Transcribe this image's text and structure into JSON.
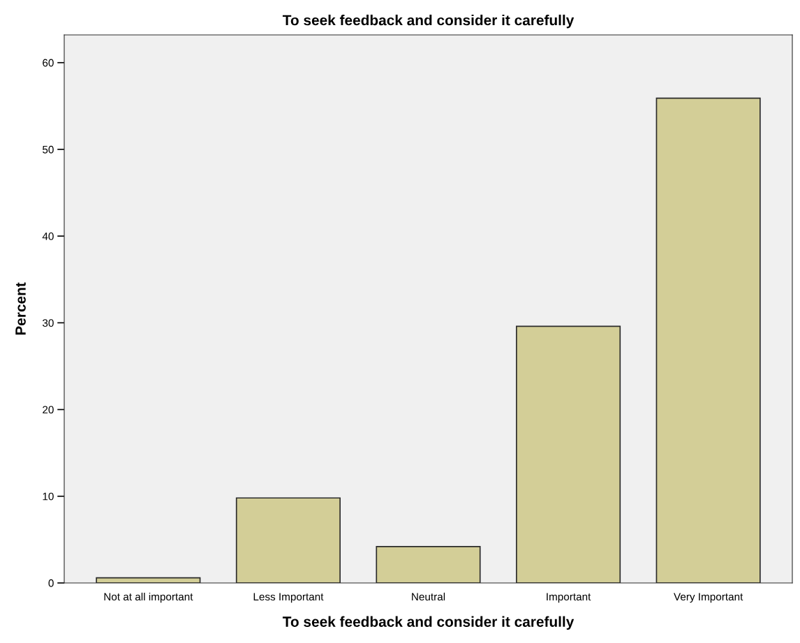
{
  "chart_data": {
    "type": "bar",
    "title": "To seek feedback and consider it carefully",
    "xlabel": "To seek feedback and consider it carefully",
    "ylabel": "Percent",
    "categories": [
      "Not at all important",
      "Less Important",
      "Neutral",
      "Important",
      "Very Important"
    ],
    "values": [
      0.6,
      9.8,
      4.2,
      29.6,
      55.9
    ],
    "color": "#d3ce97",
    "ylim": [
      0,
      63.2
    ],
    "yticks": [
      0,
      10,
      20,
      30,
      40,
      50,
      60
    ],
    "grid": false,
    "legend": false
  }
}
